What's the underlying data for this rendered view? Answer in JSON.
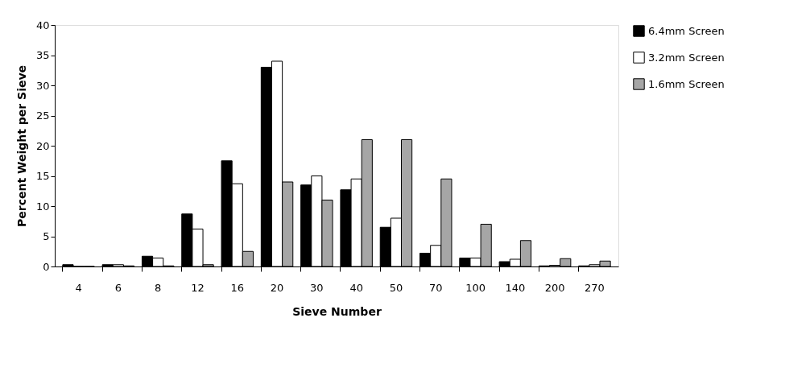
{
  "chart_data": {
    "type": "bar",
    "xlabel": "Sieve Number",
    "ylabel": "Percent Weight  per Sieve",
    "categories": [
      "4",
      "6",
      "8",
      "12",
      "16",
      "20",
      "30",
      "40",
      "50",
      "70",
      "100",
      "140",
      "200",
      "270"
    ],
    "series": [
      {
        "name": "6.4mm Screen",
        "color": "#000000",
        "values": [
          0.3,
          0.3,
          1.7,
          8.7,
          17.5,
          33,
          13.5,
          12.7,
          6.5,
          2.2,
          1.4,
          0.8,
          0.1,
          0.1
        ]
      },
      {
        "name": "3.2mm Screen",
        "color": "#ffffff",
        "values": [
          0,
          0.3,
          1.4,
          6.2,
          13.7,
          34,
          15,
          14.5,
          8,
          3.5,
          1.4,
          1.2,
          0.2,
          0.3
        ]
      },
      {
        "name": "1.6mm Screen",
        "color": "#a6a6a6",
        "values": [
          0,
          0.1,
          0.1,
          0.3,
          2.5,
          14,
          11,
          21,
          21,
          14.5,
          7,
          4.3,
          1.3,
          0.9
        ]
      }
    ],
    "ylim": [
      0,
      40
    ],
    "yticks": [
      0,
      5,
      10,
      15,
      20,
      25,
      30,
      35,
      40
    ],
    "grid": false,
    "legend": "right"
  }
}
